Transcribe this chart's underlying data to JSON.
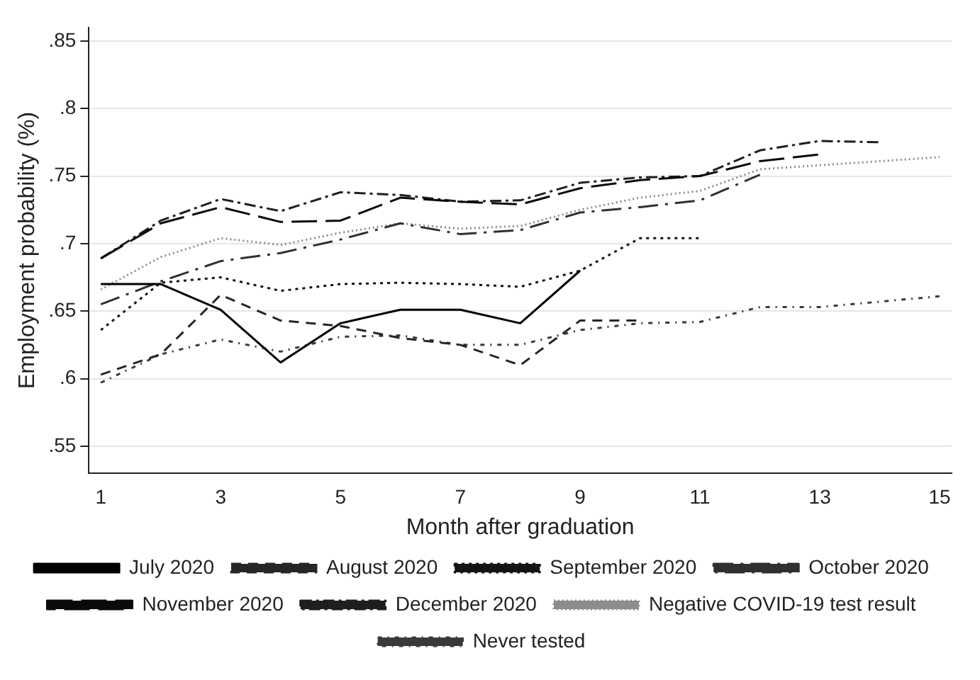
{
  "chart_data": {
    "type": "line",
    "xlabel": "Month after graduation",
    "ylabel": "Employment probability (%)",
    "xlim": [
      0.8,
      15.2
    ],
    "xticks": [
      1,
      3,
      5,
      7,
      9,
      11,
      13,
      15
    ],
    "ylim": [
      0.53,
      0.86
    ],
    "yticks": [
      {
        "value": 0.55,
        "label": ".55"
      },
      {
        "value": 0.6,
        "label": ".6"
      },
      {
        "value": 0.65,
        "label": ".65"
      },
      {
        "value": 0.7,
        "label": ".7"
      },
      {
        "value": 0.75,
        "label": ".75"
      },
      {
        "value": 0.8,
        "label": ".8"
      },
      {
        "value": 0.85,
        "label": ".85"
      }
    ],
    "grid": "y",
    "legend": "bottom",
    "marker": "none",
    "series": [
      {
        "name": "July 2020",
        "color": "#000000",
        "line_style": "solid",
        "x": [
          1,
          2,
          3,
          4,
          5,
          6,
          7,
          8,
          9
        ],
        "values": [
          0.67,
          0.67,
          0.651,
          0.612,
          0.641,
          0.651,
          0.651,
          0.641,
          0.68
        ]
      },
      {
        "name": "August 2020",
        "color": "#262626",
        "line_style": "dashed",
        "x": [
          1,
          2,
          3,
          4,
          5,
          6,
          7,
          8,
          9,
          10
        ],
        "values": [
          0.603,
          0.618,
          0.662,
          0.643,
          0.639,
          0.63,
          0.625,
          0.61,
          0.643,
          0.643
        ]
      },
      {
        "name": "September 2020",
        "color": "#141414",
        "line_style": "dotted",
        "x": [
          1,
          2,
          3,
          4,
          5,
          6,
          7,
          8,
          9,
          10,
          11
        ],
        "values": [
          0.636,
          0.671,
          0.675,
          0.665,
          0.67,
          0.671,
          0.67,
          0.668,
          0.68,
          0.704,
          0.704
        ]
      },
      {
        "name": "October 2020",
        "color": "#303030",
        "line_style": "dashed",
        "x": [
          1,
          2,
          3,
          4,
          5,
          6,
          7,
          8,
          9,
          10,
          11,
          12
        ],
        "values": [
          0.655,
          0.672,
          0.687,
          0.693,
          0.703,
          0.715,
          0.707,
          0.71,
          0.723,
          0.727,
          0.732,
          0.751
        ]
      },
      {
        "name": "November 2020",
        "color": "#0a0a0a",
        "line_style": "dashed",
        "x": [
          1,
          2,
          3,
          4,
          5,
          6,
          7,
          8,
          9,
          10,
          11,
          12,
          13
        ],
        "values": [
          0.689,
          0.715,
          0.727,
          0.716,
          0.717,
          0.734,
          0.731,
          0.729,
          0.741,
          0.747,
          0.75,
          0.761,
          0.766
        ]
      },
      {
        "name": "December 2020",
        "color": "#1e1e1e",
        "line_style": "dashed",
        "x": [
          1,
          2,
          3,
          4,
          5,
          6,
          7,
          8,
          9,
          10,
          11,
          12,
          13,
          14
        ],
        "values": [
          0.689,
          0.717,
          0.733,
          0.724,
          0.738,
          0.736,
          0.731,
          0.732,
          0.745,
          0.749,
          0.75,
          0.769,
          0.776,
          0.775
        ]
      },
      {
        "name": "Negative COVID-19 test result",
        "color": "#8c8c8c",
        "line_style": "dotted",
        "x": [
          1,
          2,
          3,
          4,
          5,
          6,
          7,
          8,
          9,
          10,
          11,
          12,
          13,
          14,
          15
        ],
        "values": [
          0.666,
          0.69,
          0.704,
          0.699,
          0.708,
          0.715,
          0.711,
          0.713,
          0.725,
          0.734,
          0.739,
          0.755,
          0.758,
          0.761,
          0.764
        ]
      },
      {
        "name": "Never tested",
        "color": "#3a3a3a",
        "line_style": "dashed",
        "x": [
          1,
          2,
          3,
          4,
          5,
          6,
          7,
          8,
          9,
          10,
          11,
          12,
          13,
          14,
          15
        ],
        "values": [
          0.597,
          0.618,
          0.629,
          0.62,
          0.631,
          0.632,
          0.625,
          0.625,
          0.636,
          0.641,
          0.642,
          0.653,
          0.653,
          0.657,
          0.661
        ]
      }
    ]
  }
}
